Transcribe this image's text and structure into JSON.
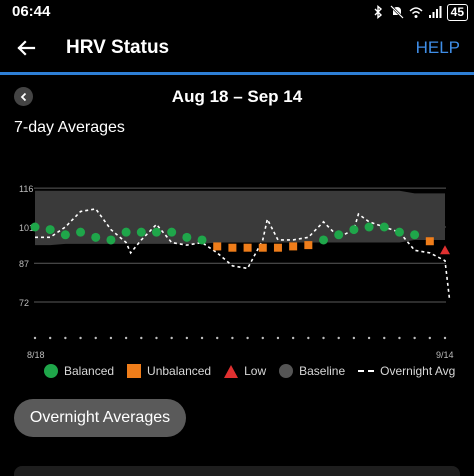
{
  "status_bar": {
    "time": "06:44",
    "battery": "45",
    "icons": [
      "bluetooth-icon",
      "mute-icon",
      "wifi-icon",
      "signal-icon",
      "battery-icon"
    ]
  },
  "header": {
    "title": "HRV Status",
    "help_label": "HELP",
    "back_icon": "arrow-left-icon"
  },
  "date_nav": {
    "range": "Aug 18 – Sep 14",
    "prev_icon": "chevron-left-icon"
  },
  "section": {
    "title": "7-day Averages"
  },
  "chart_data": {
    "type": "scatter",
    "title": "",
    "xlabel": "",
    "ylabel": "",
    "y_ticks": [
      116,
      101,
      87,
      72
    ],
    "ylim": [
      67,
      118
    ],
    "x_labels": {
      "start": "8/18",
      "end": "9/14"
    },
    "day_count": 28,
    "colors": {
      "balanced": "#1fa64a",
      "unbalanced": "#ef7d1a",
      "low": "#e03030",
      "baseline": "#3a3a3a",
      "overnight": "#ffffff"
    },
    "baseline_band": {
      "days": [
        0,
        1,
        2,
        3,
        4,
        5,
        6,
        7,
        8,
        9,
        10,
        11,
        12,
        13,
        14,
        15,
        16,
        17,
        18,
        19,
        20,
        21,
        22,
        23,
        24,
        25,
        26,
        27
      ],
      "upper": [
        115,
        115,
        115,
        115,
        115,
        115,
        115,
        115,
        115,
        115,
        115,
        115,
        115,
        115,
        115,
        115,
        115,
        115,
        115,
        115,
        115,
        115,
        115,
        115,
        115,
        114,
        114,
        114
      ],
      "lower": [
        94,
        94,
        94.5,
        94.5,
        94.5,
        94.5,
        94.5,
        94.5,
        94.5,
        94.5,
        94.5,
        94.5,
        95,
        95,
        95,
        95,
        95,
        95,
        95,
        95,
        95,
        95,
        95,
        95,
        95,
        96,
        96,
        96
      ]
    },
    "series": [
      {
        "name": "Balanced",
        "points": [
          [
            0,
            101
          ],
          [
            1,
            100
          ],
          [
            2,
            98
          ],
          [
            3,
            99
          ],
          [
            4,
            97
          ],
          [
            5,
            96
          ],
          [
            6,
            99
          ],
          [
            7,
            99
          ],
          [
            8,
            99
          ],
          [
            9,
            99
          ],
          [
            10,
            97
          ],
          [
            11,
            96
          ],
          [
            19,
            96
          ],
          [
            20,
            98
          ],
          [
            21,
            100
          ],
          [
            22,
            101
          ],
          [
            23,
            101
          ],
          [
            24,
            99
          ],
          [
            25,
            98
          ]
        ]
      },
      {
        "name": "Unbalanced",
        "points": [
          [
            12,
            93.5
          ],
          [
            13,
            93
          ],
          [
            14,
            93
          ],
          [
            15,
            93
          ],
          [
            16,
            93
          ],
          [
            17,
            93.5
          ],
          [
            18,
            94
          ],
          [
            26,
            95.5
          ]
        ]
      },
      {
        "name": "Low",
        "points": [
          [
            27,
            92
          ]
        ]
      },
      {
        "name": "Overnight Avg",
        "points": [
          [
            0,
            97
          ],
          [
            1,
            97
          ],
          [
            2,
            101
          ],
          [
            3,
            107
          ],
          [
            4,
            108
          ],
          [
            5,
            100
          ],
          [
            6,
            95
          ],
          [
            6.3,
            91
          ],
          [
            7,
            96
          ],
          [
            8,
            102
          ],
          [
            9,
            95
          ],
          [
            10,
            94
          ],
          [
            11,
            95
          ],
          [
            12,
            91
          ],
          [
            13,
            86
          ],
          [
            14,
            85
          ],
          [
            15,
            96
          ],
          [
            15.3,
            104
          ],
          [
            16,
            96
          ],
          [
            17,
            96
          ],
          [
            18,
            97
          ],
          [
            19,
            103
          ],
          [
            20,
            97
          ],
          [
            21,
            100
          ],
          [
            21.3,
            106
          ],
          [
            22,
            103
          ],
          [
            23,
            101
          ],
          [
            24,
            99
          ],
          [
            25,
            92
          ],
          [
            26,
            91
          ],
          [
            27,
            88
          ],
          [
            27.3,
            73
          ]
        ]
      }
    ],
    "legend": [
      {
        "name": "Balanced",
        "swatch": "balanced"
      },
      {
        "name": "Unbalanced",
        "swatch": "unbalanced"
      },
      {
        "name": "Low",
        "swatch": "low"
      },
      {
        "name": "Baseline",
        "swatch": "baseline"
      },
      {
        "name": "Overnight Avg",
        "swatch": "overnight"
      }
    ],
    "grid": true
  },
  "actions": {
    "overnight_label": "Overnight Averages"
  }
}
